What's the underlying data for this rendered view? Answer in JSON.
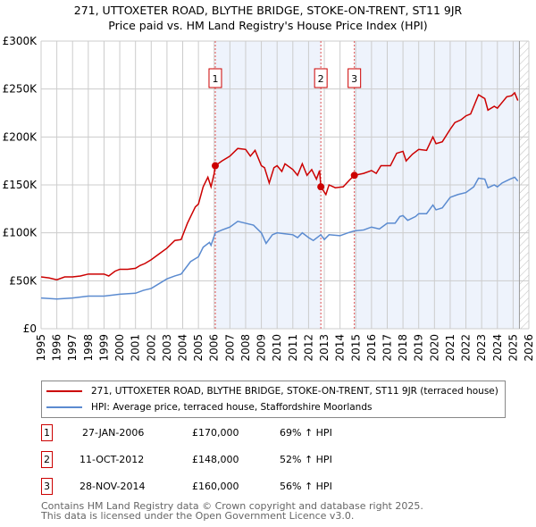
{
  "chart_data": {
    "type": "line",
    "title": "271, UTTOXETER ROAD, BLYTHE BRIDGE, STOKE-ON-TRENT, ST11 9JR",
    "subtitle": "Price paid vs. HM Land Registry's House Price Index (HPI)",
    "xlim": [
      1995,
      2026
    ],
    "ylim": [
      0,
      300000
    ],
    "y_ticks": [
      {
        "v": 0,
        "l": "£0"
      },
      {
        "v": 50000,
        "l": "£50K"
      },
      {
        "v": 100000,
        "l": "£100K"
      },
      {
        "v": 150000,
        "l": "£150K"
      },
      {
        "v": 200000,
        "l": "£200K"
      },
      {
        "v": 250000,
        "l": "£250K"
      },
      {
        "v": 300000,
        "l": "£300K"
      }
    ],
    "x_ticks": [
      "1995",
      "1996",
      "1997",
      "1998",
      "1999",
      "2000",
      "2001",
      "2002",
      "2003",
      "2004",
      "2005",
      "2006",
      "2007",
      "2008",
      "2009",
      "2010",
      "2011",
      "2012",
      "2013",
      "2014",
      "2015",
      "2016",
      "2017",
      "2018",
      "2019",
      "2020",
      "2021",
      "2022",
      "2023",
      "2024",
      "2025",
      "2026"
    ],
    "grid": true,
    "shaded_ranges": [
      [
        2006.07,
        2012.78
      ],
      [
        2014.91,
        2025.4
      ]
    ],
    "hatched_from": 2025.4,
    "series": [
      {
        "name": "271, UTTOXETER ROAD, BLYTHE BRIDGE, STOKE-ON-TRENT, ST11 9JR (terraced house)",
        "color": "#cc0000",
        "points": [
          [
            1995,
            54
          ],
          [
            1995.5,
            53
          ],
          [
            1996,
            51
          ],
          [
            1996.5,
            54
          ],
          [
            1997,
            54
          ],
          [
            1997.5,
            55
          ],
          [
            1998,
            57
          ],
          [
            1998.5,
            57
          ],
          [
            1999,
            57
          ],
          [
            1999.3,
            55
          ],
          [
            1999.7,
            60
          ],
          [
            2000,
            62
          ],
          [
            2000.5,
            62
          ],
          [
            2001,
            63
          ],
          [
            2001.3,
            66
          ],
          [
            2001.6,
            68
          ],
          [
            2002,
            72
          ],
          [
            2002.5,
            78
          ],
          [
            2003,
            84
          ],
          [
            2003.5,
            92
          ],
          [
            2003.9,
            93
          ],
          [
            2004.3,
            110
          ],
          [
            2004.8,
            127
          ],
          [
            2005,
            130
          ],
          [
            2005.3,
            148
          ],
          [
            2005.6,
            158
          ],
          [
            2005.8,
            148
          ],
          [
            2006,
            162
          ],
          [
            2006.07,
            170
          ],
          [
            2006.5,
            175
          ],
          [
            2007,
            180
          ],
          [
            2007.5,
            188
          ],
          [
            2008,
            187
          ],
          [
            2008.3,
            180
          ],
          [
            2008.6,
            186
          ],
          [
            2009,
            170
          ],
          [
            2009.2,
            168
          ],
          [
            2009.5,
            152
          ],
          [
            2009.8,
            168
          ],
          [
            2010,
            170
          ],
          [
            2010.3,
            164
          ],
          [
            2010.5,
            172
          ],
          [
            2011,
            166
          ],
          [
            2011.3,
            160
          ],
          [
            2011.6,
            172
          ],
          [
            2011.9,
            160
          ],
          [
            2012.2,
            166
          ],
          [
            2012.5,
            156
          ],
          [
            2012.7,
            165
          ],
          [
            2012.78,
            148
          ],
          [
            2013.1,
            140
          ],
          [
            2013.3,
            150
          ],
          [
            2013.7,
            147
          ],
          [
            2014.2,
            148
          ],
          [
            2014.6,
            155
          ],
          [
            2014.91,
            160
          ],
          [
            2015.5,
            162
          ],
          [
            2016,
            165
          ],
          [
            2016.3,
            162
          ],
          [
            2016.6,
            170
          ],
          [
            2017.2,
            170
          ],
          [
            2017.6,
            183
          ],
          [
            2018,
            185
          ],
          [
            2018.2,
            175
          ],
          [
            2018.6,
            182
          ],
          [
            2019,
            187
          ],
          [
            2019.5,
            186
          ],
          [
            2019.9,
            200
          ],
          [
            2020.1,
            193
          ],
          [
            2020.5,
            195
          ],
          [
            2021,
            208
          ],
          [
            2021.3,
            215
          ],
          [
            2021.7,
            218
          ],
          [
            2022,
            222
          ],
          [
            2022.3,
            224
          ],
          [
            2022.5,
            232
          ],
          [
            2022.8,
            244
          ],
          [
            2023.2,
            240
          ],
          [
            2023.4,
            228
          ],
          [
            2023.8,
            232
          ],
          [
            2024,
            230
          ],
          [
            2024.3,
            236
          ],
          [
            2024.6,
            242
          ],
          [
            2024.9,
            243
          ],
          [
            2025.1,
            246
          ],
          [
            2025.3,
            238
          ]
        ]
      },
      {
        "name": "HPI: Average price, terraced house, Staffordshire Moorlands",
        "color": "#5b8bd0",
        "points": [
          [
            1995,
            32
          ],
          [
            1996,
            31
          ],
          [
            1997,
            32
          ],
          [
            1998,
            34
          ],
          [
            1999,
            34
          ],
          [
            2000,
            36
          ],
          [
            2001,
            37
          ],
          [
            2001.5,
            40
          ],
          [
            2002,
            42
          ],
          [
            2002.5,
            47
          ],
          [
            2003,
            52
          ],
          [
            2003.5,
            55
          ],
          [
            2003.9,
            57
          ],
          [
            2004.5,
            70
          ],
          [
            2005,
            75
          ],
          [
            2005.3,
            85
          ],
          [
            2005.7,
            90
          ],
          [
            2005.8,
            87
          ],
          [
            2006.07,
            100
          ],
          [
            2006.5,
            103
          ],
          [
            2007,
            106
          ],
          [
            2007.5,
            112
          ],
          [
            2008,
            110
          ],
          [
            2008.5,
            108
          ],
          [
            2009,
            100
          ],
          [
            2009.3,
            89
          ],
          [
            2009.7,
            98
          ],
          [
            2010,
            100
          ],
          [
            2010.5,
            99
          ],
          [
            2011,
            98
          ],
          [
            2011.3,
            95
          ],
          [
            2011.6,
            100
          ],
          [
            2012,
            95
          ],
          [
            2012.3,
            92
          ],
          [
            2012.78,
            98
          ],
          [
            2013,
            93
          ],
          [
            2013.3,
            98
          ],
          [
            2014,
            97
          ],
          [
            2014.5,
            100
          ],
          [
            2014.91,
            102
          ],
          [
            2015.5,
            103
          ],
          [
            2016,
            106
          ],
          [
            2016.5,
            104
          ],
          [
            2017,
            110
          ],
          [
            2017.5,
            110
          ],
          [
            2017.8,
            117
          ],
          [
            2018,
            118
          ],
          [
            2018.3,
            113
          ],
          [
            2018.8,
            117
          ],
          [
            2019,
            120
          ],
          [
            2019.5,
            120
          ],
          [
            2019.9,
            129
          ],
          [
            2020.1,
            124
          ],
          [
            2020.5,
            126
          ],
          [
            2021,
            137
          ],
          [
            2021.5,
            140
          ],
          [
            2022,
            142
          ],
          [
            2022.5,
            148
          ],
          [
            2022.8,
            157
          ],
          [
            2023.2,
            156
          ],
          [
            2023.4,
            147
          ],
          [
            2023.8,
            150
          ],
          [
            2024,
            148
          ],
          [
            2024.3,
            152
          ],
          [
            2024.8,
            156
          ],
          [
            2025.1,
            158
          ],
          [
            2025.3,
            154
          ]
        ]
      }
    ],
    "sales": [
      {
        "label": "1",
        "x": 2006.07,
        "y": 170
      },
      {
        "label": "2",
        "x": 2012.78,
        "y": 148
      },
      {
        "label": "3",
        "x": 2014.91,
        "y": 160
      }
    ]
  },
  "table": [
    {
      "n": "1",
      "date": "27-JAN-2006",
      "price": "£170,000",
      "hpi": "69% ↑ HPI"
    },
    {
      "n": "2",
      "date": "11-OCT-2012",
      "price": "£148,000",
      "hpi": "52% ↑ HPI"
    },
    {
      "n": "3",
      "date": "28-NOV-2014",
      "price": "£160,000",
      "hpi": "56% ↑ HPI"
    }
  ],
  "footer": {
    "line1": "Contains HM Land Registry data © Crown copyright and database right 2025.",
    "line2": "This data is licensed under the Open Government Licence v3.0."
  }
}
